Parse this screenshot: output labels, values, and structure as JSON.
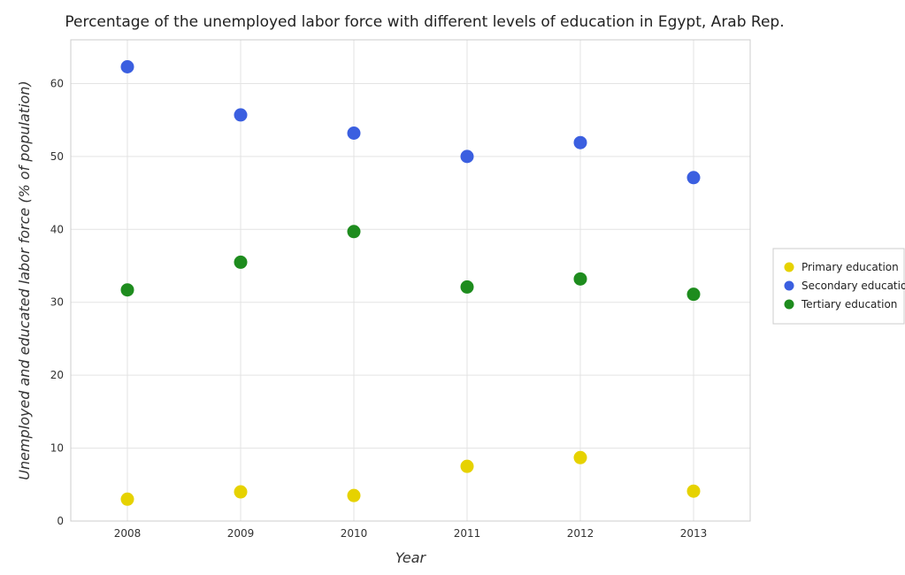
{
  "chart_data": {
    "type": "scatter",
    "title": "Percentage of the unemployed labor force with different levels of education in Egypt, Arab Rep.",
    "xlabel": "Year",
    "ylabel": "Unemployed and educated labor force (% of population)",
    "categories": [
      "2008",
      "2009",
      "2010",
      "2011",
      "2012",
      "2013"
    ],
    "ylim": [
      0,
      66
    ],
    "yticks": [
      0,
      10,
      20,
      30,
      40,
      50,
      60
    ],
    "grid": true,
    "legend_position": "right",
    "series": [
      {
        "name": "Primary education",
        "color": "#e6d200",
        "values": [
          3.0,
          4.0,
          3.5,
          7.5,
          8.7,
          4.1
        ]
      },
      {
        "name": "Secondary education",
        "color": "#3b5fe0",
        "values": [
          62.3,
          55.7,
          53.2,
          50.0,
          51.9,
          47.1
        ]
      },
      {
        "name": "Tertiary education",
        "color": "#1e8c1e",
        "values": [
          31.7,
          35.5,
          39.7,
          32.1,
          33.2,
          31.1
        ]
      }
    ]
  }
}
